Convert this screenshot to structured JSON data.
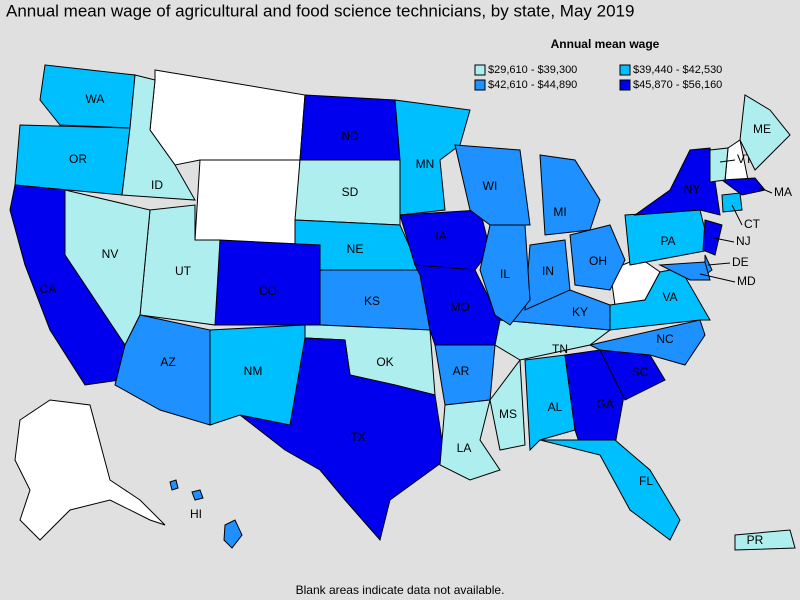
{
  "title": "Annual mean wage of agricultural and food science technicians, by state, May 2019",
  "legend": {
    "title": "Annual mean wage",
    "items": [
      {
        "label": "$29,610 - $39,300",
        "color": "#aeeeee"
      },
      {
        "label": "$39,440 - $42,530",
        "color": "#00bfff"
      },
      {
        "label": "$42,610 - $44,890",
        "color": "#1e90ff"
      },
      {
        "label": "$45,870 - $56,160",
        "color": "#0000ee"
      }
    ]
  },
  "states": [
    {
      "label": "WA",
      "color": "#00bfff"
    },
    {
      "label": "OR",
      "color": "#00bfff"
    },
    {
      "label": "ID",
      "color": "#aeeeee"
    },
    {
      "label": "ND",
      "color": "#0000ee"
    },
    {
      "label": "SD",
      "color": "#aeeeee"
    },
    {
      "label": "NE",
      "color": "#00bfff"
    },
    {
      "label": "KS",
      "color": "#1e90ff"
    },
    {
      "label": "OK",
      "color": "#aeeeee"
    },
    {
      "label": "TX",
      "color": "#0000ee"
    },
    {
      "label": "NM",
      "color": "#00bfff"
    },
    {
      "label": "CO",
      "color": "#0000ee"
    },
    {
      "label": "UT",
      "color": "#aeeeee"
    },
    {
      "label": "NV",
      "color": "#aeeeee"
    },
    {
      "label": "CA",
      "color": "#0000ee"
    },
    {
      "label": "AZ",
      "color": "#1e90ff"
    },
    {
      "label": "MN",
      "color": "#00bfff"
    },
    {
      "label": "IA",
      "color": "#0000ee"
    },
    {
      "label": "MO",
      "color": "#0000ee"
    },
    {
      "label": "AR",
      "color": "#1e90ff"
    },
    {
      "label": "LA",
      "color": "#aeeeee"
    },
    {
      "label": "MS",
      "color": "#aeeeee"
    },
    {
      "label": "AL",
      "color": "#00bfff"
    },
    {
      "label": "GA",
      "color": "#0000ee"
    },
    {
      "label": "FL",
      "color": "#00bfff"
    },
    {
      "label": "SC",
      "color": "#0000ee"
    },
    {
      "label": "NC",
      "color": "#1e90ff"
    },
    {
      "label": "TN",
      "color": "#aeeeee"
    },
    {
      "label": "KY",
      "color": "#1e90ff"
    },
    {
      "label": "VA",
      "color": "#00bfff"
    },
    {
      "label": "OH",
      "color": "#1e90ff"
    },
    {
      "label": "IN",
      "color": "#1e90ff"
    },
    {
      "label": "IL",
      "color": "#1e90ff"
    },
    {
      "label": "WI",
      "color": "#1e90ff"
    },
    {
      "label": "MI",
      "color": "#1e90ff"
    },
    {
      "label": "PA",
      "color": "#00bfff"
    },
    {
      "label": "NY",
      "color": "#0000ee"
    },
    {
      "label": "NJ",
      "color": "#0000ee"
    },
    {
      "label": "DE",
      "color": "#1e90ff"
    },
    {
      "label": "MD",
      "color": "#1e90ff"
    },
    {
      "label": "CT",
      "color": "#00bfff"
    },
    {
      "label": "MA",
      "color": "#0000ee"
    },
    {
      "label": "VT",
      "color": "#aeeeee"
    },
    {
      "label": "ME",
      "color": "#aeeeee"
    },
    {
      "label": "HI",
      "color": "#1e90ff"
    },
    {
      "label": "PR",
      "color": "#aeeeee"
    }
  ],
  "footnote": "Blank areas indicate data not available."
}
